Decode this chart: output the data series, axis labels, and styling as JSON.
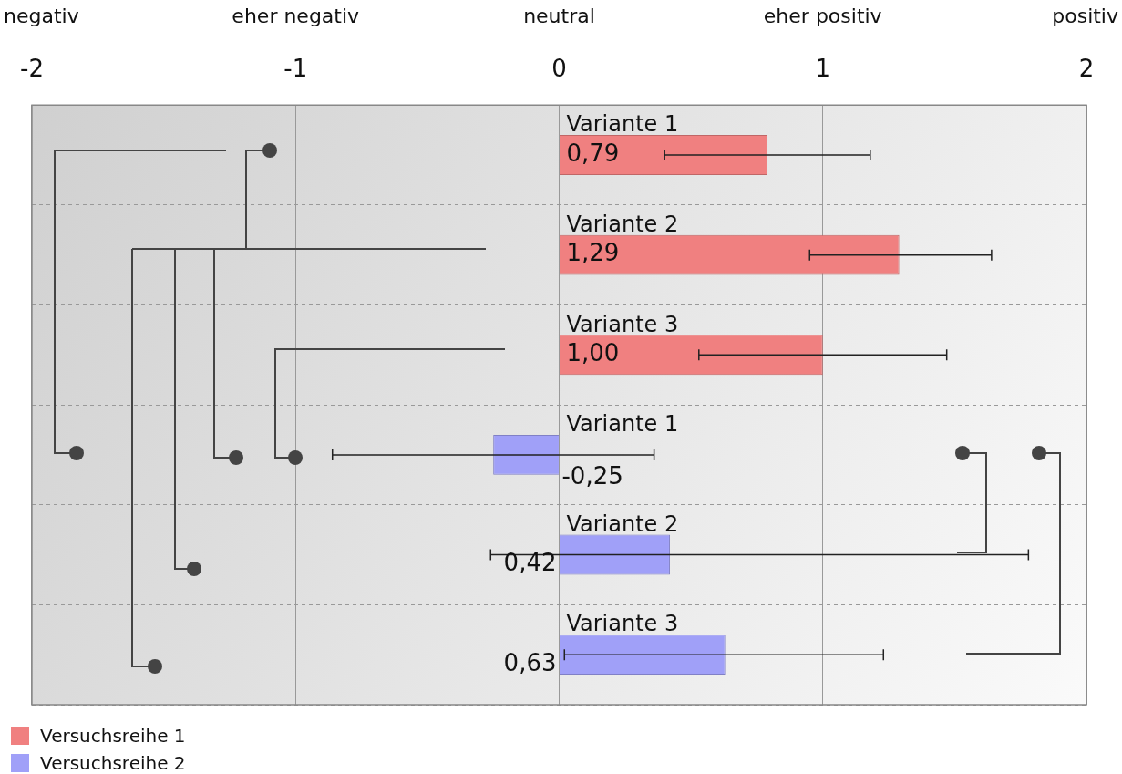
{
  "chart_data": {
    "type": "bar",
    "orientation": "horizontal",
    "categories": [
      "Variante 1",
      "Variante 2",
      "Variante 3",
      "Variante 1",
      "Variante 2",
      "Variante 3"
    ],
    "series": [
      {
        "name": "Versuchsreihe 1",
        "color": "#f08080",
        "values": [
          0.79,
          1.29,
          1.0,
          null,
          null,
          null
        ],
        "errors": [
          [
            0.4,
            1.18
          ],
          [
            0.95,
            1.64
          ],
          [
            0.53,
            1.47
          ],
          null,
          null,
          null
        ],
        "value_labels": [
          "0,79",
          "1,29",
          "1,00",
          null,
          null,
          null
        ]
      },
      {
        "name": "Versuchsreihe 2",
        "color": "#a0a0f8",
        "values": [
          null,
          null,
          null,
          -0.25,
          0.42,
          0.63
        ],
        "errors": [
          null,
          null,
          null,
          [
            -0.86,
            0.36
          ],
          [
            -0.26,
            1.78
          ],
          [
            0.02,
            1.23
          ]
        ],
        "value_labels": [
          null,
          null,
          null,
          "-0,25",
          "0,42",
          "0,63"
        ]
      }
    ],
    "xlim": [
      -2,
      2
    ],
    "xticks": [
      -2,
      -1,
      0,
      1,
      2
    ],
    "annotations": [
      "negativ",
      "eher negativ",
      "neutral",
      "eher positiv",
      "positiv"
    ],
    "grid": true,
    "legend": "bottom left"
  }
}
